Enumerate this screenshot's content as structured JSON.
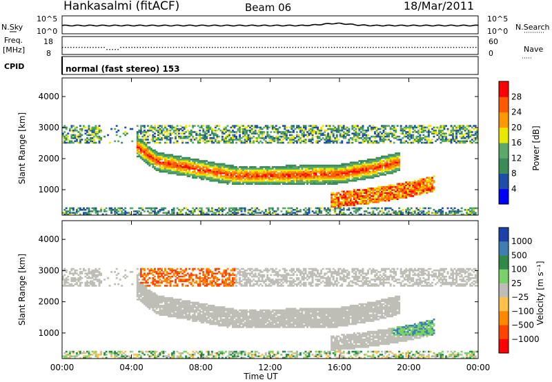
{
  "header": {
    "station": "Hankasalmi (fitACF)",
    "beam": "Beam 06",
    "date": "18/Mar/2011"
  },
  "top_panels": {
    "nsky_label": "N.Sky",
    "nsearch_label": "N.Search",
    "noise_ticks": [
      "10^5",
      "10^0"
    ],
    "freq_label_1": "Freq.",
    "freq_label_2": "[MHz]",
    "freq_ticks": [
      "18",
      "8"
    ],
    "nave_label": "Nave",
    "nave_ticks": [
      "60",
      "0"
    ],
    "cpid_label": "CPID",
    "cpid_text": "normal (fast stereo) 153"
  },
  "chart_data": [
    {
      "type": "heatmap",
      "title": "",
      "xlabel": "Time UT",
      "ylabel": "Slant Range [km]",
      "x_ticks": [
        "00:00",
        "04:00",
        "08:00",
        "12:00",
        "16:00",
        "20:00",
        "00:00"
      ],
      "xlim_hours": [
        0,
        24
      ],
      "y_ticks": [
        1000,
        2000,
        3000,
        4000
      ],
      "ylim": [
        180,
        4600
      ],
      "colorbar_label": "Power [dB]",
      "colorbar_ticks": [
        "4",
        "8",
        "12",
        "16",
        "20",
        "24",
        "28"
      ],
      "colorbar_range": [
        0,
        30
      ],
      "colors": [
        "#0000ff",
        "#1f4ea8",
        "#3a8a5a",
        "#5aa86a",
        "#e8e800",
        "#ff9900",
        "#ff5a00",
        "#ff0000"
      ],
      "regions": [
        {
          "name": "main_arc",
          "start_h": 4.3,
          "end_h": 19.5,
          "curve_km": [
            [
              4.3,
              2400
            ],
            [
              5.5,
              1900
            ],
            [
              8,
              1650
            ],
            [
              10,
              1450
            ],
            [
              12,
              1450
            ],
            [
              14,
              1480
            ],
            [
              16,
              1500
            ],
            [
              18,
              1700
            ],
            [
              19.5,
              1900
            ]
          ],
          "width_km": 520,
          "level_dB": 22
        },
        {
          "name": "lower_branch",
          "start_h": 15.5,
          "end_h": 21.5,
          "curve_km": [
            [
              15.5,
              650
            ],
            [
              18,
              820
            ],
            [
              20,
              1000
            ],
            [
              21.5,
              1200
            ]
          ],
          "width_km": 250,
          "level_dB": 24
        },
        {
          "name": "upper_band",
          "start_h": 0,
          "end_h": 24,
          "range_km": [
            2500,
            3100
          ],
          "level_dB": 10
        }
      ]
    },
    {
      "type": "heatmap",
      "title": "",
      "xlabel": "Time UT",
      "ylabel": "Slant Range [km]",
      "x_ticks": [
        "00:00",
        "04:00",
        "08:00",
        "12:00",
        "16:00",
        "20:00",
        "00:00"
      ],
      "xlim_hours": [
        0,
        24
      ],
      "y_ticks": [
        1000,
        2000,
        3000,
        4000
      ],
      "ylim": [
        180,
        4600
      ],
      "colorbar_label": "Velocity [m s⁻¹]",
      "colorbar_ticks": [
        "1000",
        "500",
        "100",
        "25",
        "−25",
        "−100",
        "−500",
        "−1000"
      ],
      "colors": [
        "#1c3fa8",
        "#3f7fb0",
        "#2f8a4a",
        "#7ad06a",
        "#bebeb6",
        "#ffc04a",
        "#ff8800",
        "#ff4400",
        "#ff0000"
      ],
      "ground_scatter_color": "#bebeb6"
    }
  ]
}
